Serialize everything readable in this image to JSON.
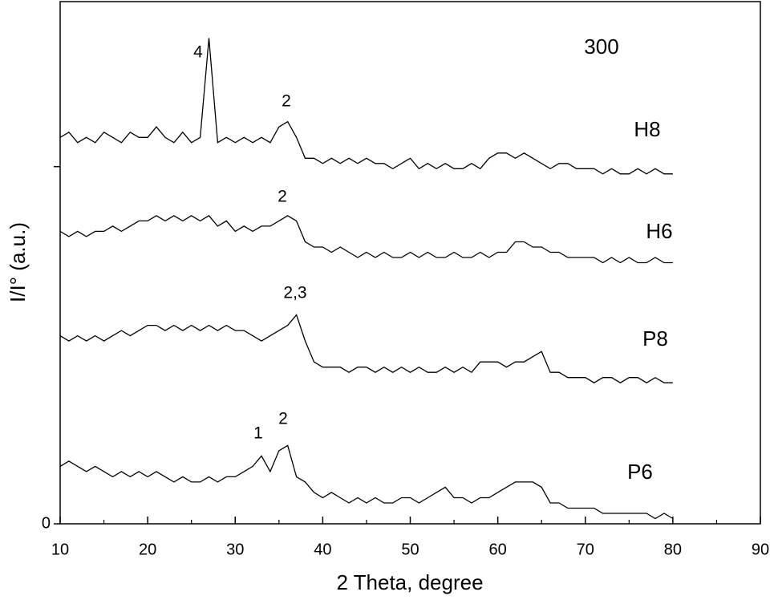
{
  "chart_data": {
    "type": "line",
    "title": "300",
    "x_label": "2 Theta, degree",
    "y_label": "I/I° (a.u.)",
    "x": [
      10,
      11,
      12,
      13,
      14,
      15,
      16,
      17,
      18,
      19,
      20,
      21,
      22,
      23,
      24,
      25,
      26,
      27,
      28,
      29,
      30,
      31,
      32,
      33,
      34,
      35,
      36,
      37,
      38,
      39,
      40,
      41,
      42,
      43,
      44,
      45,
      46,
      47,
      48,
      49,
      50,
      51,
      52,
      53,
      54,
      55,
      56,
      57,
      58,
      59,
      60,
      61,
      62,
      63,
      64,
      65,
      66,
      67,
      68,
      69,
      70,
      71,
      72,
      73,
      74,
      75,
      76,
      77,
      78,
      79,
      80
    ],
    "series": [
      {
        "name": "H8",
        "color": "#000000",
        "values": [
          74,
          75,
          73,
          74,
          73,
          75,
          74,
          73,
          75,
          74,
          74,
          76,
          74,
          73,
          75,
          73,
          74,
          93,
          73,
          74,
          73,
          74,
          73,
          74,
          73,
          76,
          77,
          74,
          70,
          70,
          69,
          70,
          69,
          70,
          69,
          70,
          69,
          69,
          68,
          69,
          70,
          68,
          69,
          68,
          69,
          68,
          68,
          69,
          68,
          70,
          71,
          71,
          70,
          71,
          70,
          69,
          68,
          69,
          69,
          68,
          68,
          68,
          67,
          68,
          67,
          67,
          68,
          67,
          68,
          67,
          67
        ]
      },
      {
        "name": "H6",
        "color": "#000000",
        "values": [
          56,
          55,
          56,
          55,
          56,
          56,
          57,
          56,
          57,
          58,
          58,
          59,
          58,
          59,
          58,
          59,
          58,
          59,
          57,
          58,
          56,
          57,
          56,
          57,
          57,
          58,
          59,
          58,
          54,
          53,
          53,
          52,
          53,
          52,
          51,
          52,
          51,
          52,
          51,
          51,
          52,
          51,
          52,
          51,
          51,
          52,
          51,
          51,
          52,
          51,
          52,
          52,
          54,
          54,
          53,
          53,
          52,
          52,
          51,
          51,
          51,
          51,
          50,
          51,
          50,
          51,
          50,
          50,
          51,
          50,
          50
        ]
      },
      {
        "name": "P8",
        "color": "#000000",
        "values": [
          36,
          35,
          36,
          35,
          36,
          35,
          36,
          37,
          36,
          37,
          38,
          38,
          37,
          38,
          37,
          38,
          37,
          38,
          37,
          38,
          37,
          37,
          36,
          35,
          36,
          37,
          38,
          40,
          35,
          31,
          30,
          30,
          30,
          29,
          30,
          30,
          29,
          30,
          29,
          30,
          29,
          30,
          29,
          29,
          30,
          29,
          30,
          29,
          31,
          31,
          31,
          30,
          31,
          31,
          32,
          33,
          29,
          29,
          28,
          28,
          28,
          27,
          28,
          28,
          27,
          28,
          28,
          27,
          28,
          27,
          27
        ]
      },
      {
        "name": "P6",
        "color": "#000000",
        "values": [
          11,
          12,
          11,
          10,
          11,
          10,
          9,
          10,
          9,
          10,
          9,
          10,
          9,
          8,
          9,
          8,
          8,
          9,
          8,
          9,
          9,
          10,
          11,
          13,
          10,
          14,
          15,
          9,
          8,
          6,
          5,
          6,
          5,
          4,
          5,
          4,
          5,
          4,
          4,
          5,
          5,
          4,
          5,
          6,
          7,
          5,
          5,
          4,
          5,
          5,
          6,
          7,
          8,
          8,
          8,
          7,
          4,
          4,
          3,
          3,
          3,
          3,
          2,
          2,
          2,
          2,
          2,
          2,
          1,
          2,
          1
        ]
      }
    ],
    "annotations": [
      "4",
      "2",
      "2",
      "2,3",
      "1",
      "2"
    ],
    "xlim": [
      10,
      90
    ],
    "xticks": [
      10,
      20,
      30,
      40,
      50,
      60,
      70,
      80,
      90
    ],
    "ylim": [
      0,
      100
    ],
    "yticks": [
      0,
      {
        "value": 68.4,
        "label": null
      }
    ]
  }
}
